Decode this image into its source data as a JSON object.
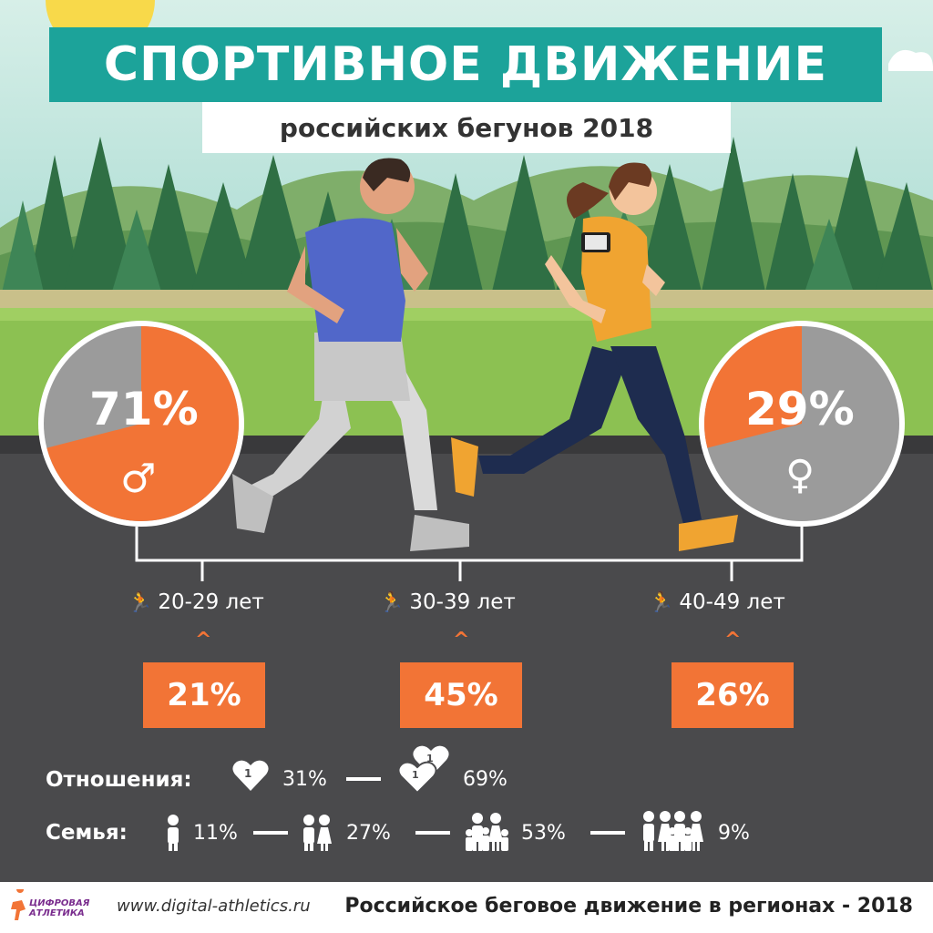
{
  "header": {
    "title": "СПОРТИВНОЕ ДВИЖЕНИЕ",
    "subtitle": "российских бегунов 2018"
  },
  "gender": {
    "male": {
      "percent": "71%",
      "share": 0.71,
      "symbol": "♂"
    },
    "female": {
      "percent": "29%",
      "share": 0.29,
      "symbol": "♀"
    }
  },
  "age_groups": [
    {
      "label": "20-29 лет",
      "percent": "21%",
      "caret": "^"
    },
    {
      "label": "30-39 лет",
      "percent": "45%",
      "caret": "^"
    },
    {
      "label": "40-49 лет",
      "percent": "26%",
      "caret": "^"
    }
  ],
  "relationships": {
    "label": "Отношения:",
    "single": "31%",
    "couple": "69%",
    "single_icon_text": "1",
    "couple_icon_text_a": "1",
    "couple_icon_text_b": "1"
  },
  "family": {
    "label": "Семья:",
    "values": [
      "11%",
      "27%",
      "53%",
      "9%"
    ]
  },
  "footer": {
    "logo_line1": "ЦИФРОВАЯ",
    "logo_line2": "АТЛЕТИКА",
    "url": "www.digital-athletics.ru",
    "title": "Российское беговое движение в регионах - 2018"
  },
  "colors": {
    "accent_orange": "#f27436",
    "teal": "#1ca39a",
    "gray": "#9b9b9b",
    "road": "#4a4a4c"
  }
}
